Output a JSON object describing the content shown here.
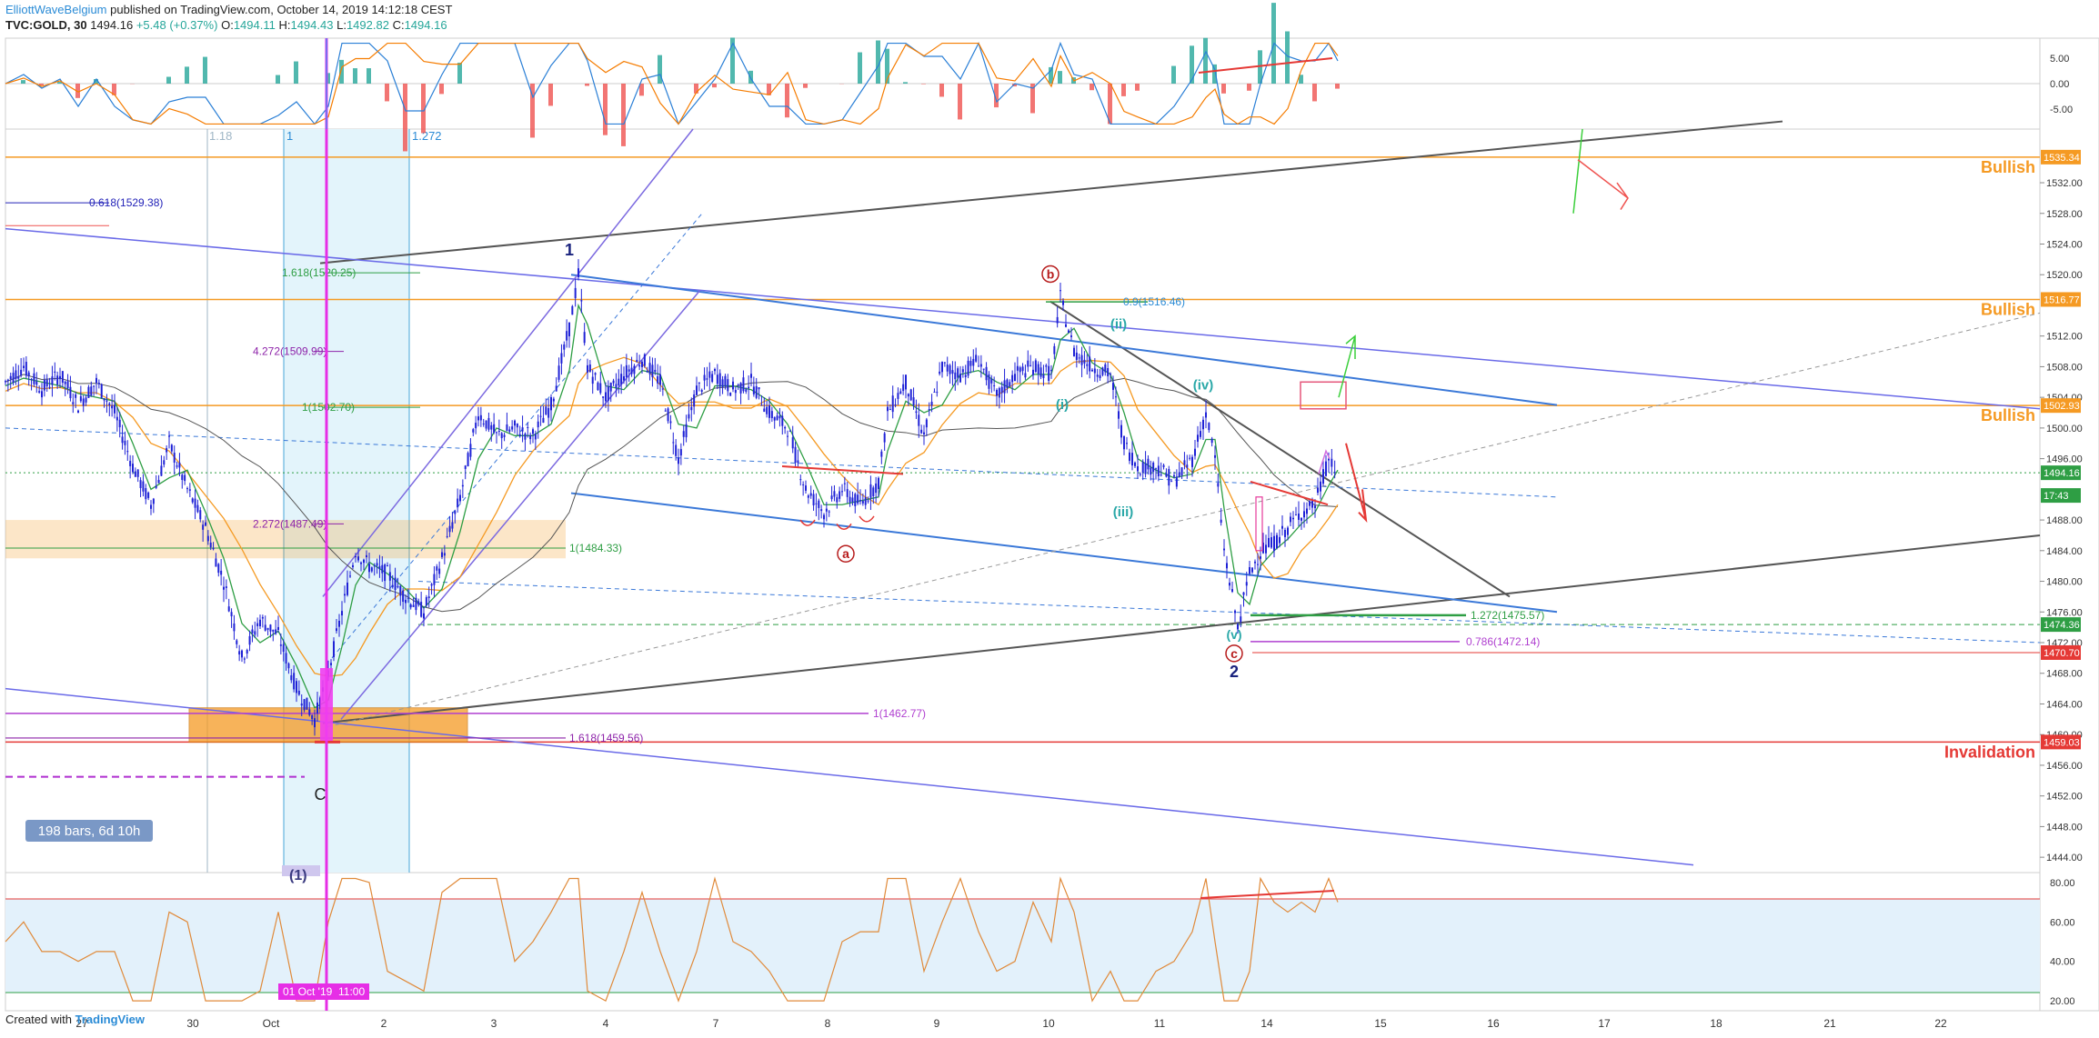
{
  "header": {
    "author": "ElliottWaveBelgium",
    "published": " published on TradingView.com, October 14, 2019 14:12:18 CEST",
    "symbol": "TVC:GOLD, 30",
    "last": "1494.16",
    "change": "+5.48 (+0.37%)",
    "o_label": "O:",
    "o": "1494.11",
    "h_label": "H:",
    "h": "1494.43",
    "l_label": "L:",
    "l": "1492.82",
    "c_label": "C:",
    "c": "1494.16"
  },
  "footer": {
    "created": "Created with",
    "brand": "TradingView"
  },
  "colors": {
    "candle": "#1f22d6",
    "bullish": "#f59a23",
    "invalid": "#e53935",
    "trend": "#555555",
    "channel": "#3a78d8",
    "green": "#2e9e44",
    "purple": "#8e24aa",
    "macd_up": "#26a69a",
    "macd_dn": "#ef5350",
    "rsi": "#e08a3a"
  },
  "chart_data": [
    {
      "type": "line",
      "name": "price",
      "ylim": [
        1442,
        1539
      ],
      "x_ticks": [
        "27",
        "30",
        "Oct",
        "2",
        "3",
        "4",
        "7",
        "8",
        "9",
        "10",
        "11",
        "14",
        "15",
        "16",
        "17",
        "18",
        "21",
        "22"
      ],
      "y_ticks": [
        "1532.00",
        "1528.00",
        "1524.00",
        "1520.00",
        "1512.00",
        "1508.00",
        "1504.00",
        "1500.00",
        "1496.00",
        "1488.00",
        "1484.00",
        "1480.00",
        "1476.00",
        "1472.00",
        "1468.00",
        "1464.00",
        "1460.00",
        "1456.00",
        "1452.00",
        "1448.00",
        "1444.00"
      ],
      "price_badges": [
        {
          "value": 1535.34,
          "label": "1535.34",
          "color": "#f59a23"
        },
        {
          "value": 1516.77,
          "label": "1516.77",
          "color": "#f59a23"
        },
        {
          "value": 1502.93,
          "label": "1502.93",
          "color": "#f59a23"
        },
        {
          "value": 1494.16,
          "label": "1494.16",
          "color": "#2e9e44"
        },
        {
          "value": 1491.2,
          "label": "17:43",
          "color": "#2e9e44"
        },
        {
          "value": 1474.36,
          "label": "1474.36",
          "color": "#2e9e44"
        },
        {
          "value": 1470.7,
          "label": "1470.70",
          "color": "#e53935"
        },
        {
          "value": 1459.03,
          "label": "1459.03",
          "color": "#e53935"
        }
      ],
      "zone_labels": [
        {
          "text": "Bullish",
          "value": 1535.34
        },
        {
          "text": "Bullish",
          "value": 1516.77
        },
        {
          "text": "Bullish",
          "value": 1502.93
        },
        {
          "text": "Invalidation",
          "value": 1459.03
        }
      ],
      "fib_labels": [
        {
          "text": "0.618(1529.38)",
          "value": 1529.38
        },
        {
          "text": "1.618(1520.25)",
          "value": 1520.25
        },
        {
          "text": "4.272(1509.99)",
          "value": 1509.99
        },
        {
          "text": "1(1502.70)",
          "value": 1502.7
        },
        {
          "text": "2.272(1487.49)",
          "value": 1487.49
        },
        {
          "text": "1(1484.33)",
          "value": 1484.33
        },
        {
          "text": "1(1462.77)",
          "value": 1462.77
        },
        {
          "text": "1.618(1459.56)",
          "value": 1459.56
        },
        {
          "text": "0.9(1516.46)",
          "value": 1516.46
        },
        {
          "text": "1.272(1475.57)",
          "value": 1475.57
        },
        {
          "text": "0.786(1472.14)",
          "value": 1472.14
        }
      ],
      "fib_time_labels": [
        "1.18",
        "1",
        "1.272"
      ],
      "wave_labels": [
        "1",
        "b",
        "a",
        "c",
        "(ii)",
        "(i)",
        "(iv)",
        "(iii)",
        "(v)",
        "2",
        "C"
      ],
      "bars_label": "198 bars, 6d 10h",
      "date_badge": "01 Oct '19",
      "time_badge": "11:00",
      "partial_label": "(1)",
      "series": [
        {
          "x": 0,
          "y": 1506
        },
        {
          "x": 20,
          "y": 1508
        },
        {
          "x": 40,
          "y": 1505
        },
        {
          "x": 60,
          "y": 1507
        },
        {
          "x": 80,
          "y": 1503
        },
        {
          "x": 100,
          "y": 1506
        },
        {
          "x": 120,
          "y": 1502
        },
        {
          "x": 140,
          "y": 1495
        },
        {
          "x": 160,
          "y": 1490
        },
        {
          "x": 180,
          "y": 1498
        },
        {
          "x": 200,
          "y": 1492
        },
        {
          "x": 220,
          "y": 1487
        },
        {
          "x": 240,
          "y": 1480
        },
        {
          "x": 260,
          "y": 1470
        },
        {
          "x": 280,
          "y": 1475
        },
        {
          "x": 300,
          "y": 1473
        },
        {
          "x": 320,
          "y": 1466
        },
        {
          "x": 340,
          "y": 1462
        },
        {
          "x": 355,
          "y": 1468
        },
        {
          "x": 370,
          "y": 1476
        },
        {
          "x": 385,
          "y": 1484
        },
        {
          "x": 400,
          "y": 1482
        },
        {
          "x": 420,
          "y": 1481
        },
        {
          "x": 440,
          "y": 1478
        },
        {
          "x": 460,
          "y": 1476
        },
        {
          "x": 480,
          "y": 1483
        },
        {
          "x": 500,
          "y": 1491
        },
        {
          "x": 520,
          "y": 1502
        },
        {
          "x": 540,
          "y": 1499
        },
        {
          "x": 560,
          "y": 1500
        },
        {
          "x": 580,
          "y": 1499
        },
        {
          "x": 600,
          "y": 1503
        },
        {
          "x": 620,
          "y": 1513
        },
        {
          "x": 630,
          "y": 1520
        },
        {
          "x": 640,
          "y": 1508
        },
        {
          "x": 660,
          "y": 1504
        },
        {
          "x": 680,
          "y": 1507
        },
        {
          "x": 700,
          "y": 1509
        },
        {
          "x": 720,
          "y": 1506
        },
        {
          "x": 740,
          "y": 1496
        },
        {
          "x": 760,
          "y": 1505
        },
        {
          "x": 780,
          "y": 1507
        },
        {
          "x": 800,
          "y": 1505
        },
        {
          "x": 820,
          "y": 1506
        },
        {
          "x": 840,
          "y": 1502
        },
        {
          "x": 860,
          "y": 1500
        },
        {
          "x": 880,
          "y": 1492
        },
        {
          "x": 900,
          "y": 1489
        },
        {
          "x": 920,
          "y": 1492
        },
        {
          "x": 940,
          "y": 1490
        },
        {
          "x": 960,
          "y": 1493
        },
        {
          "x": 970,
          "y": 1502
        },
        {
          "x": 990,
          "y": 1506
        },
        {
          "x": 1010,
          "y": 1499
        },
        {
          "x": 1030,
          "y": 1508
        },
        {
          "x": 1050,
          "y": 1507
        },
        {
          "x": 1070,
          "y": 1509
        },
        {
          "x": 1090,
          "y": 1504
        },
        {
          "x": 1110,
          "y": 1507
        },
        {
          "x": 1130,
          "y": 1508
        },
        {
          "x": 1150,
          "y": 1507
        },
        {
          "x": 1160,
          "y": 1517
        },
        {
          "x": 1175,
          "y": 1510
        },
        {
          "x": 1195,
          "y": 1508
        },
        {
          "x": 1215,
          "y": 1507
        },
        {
          "x": 1230,
          "y": 1498
        },
        {
          "x": 1245,
          "y": 1495
        },
        {
          "x": 1265,
          "y": 1495
        },
        {
          "x": 1285,
          "y": 1493
        },
        {
          "x": 1305,
          "y": 1496
        },
        {
          "x": 1320,
          "y": 1502
        },
        {
          "x": 1330,
          "y": 1496
        },
        {
          "x": 1340,
          "y": 1484
        },
        {
          "x": 1355,
          "y": 1474
        },
        {
          "x": 1368,
          "y": 1481
        },
        {
          "x": 1380,
          "y": 1484
        },
        {
          "x": 1395,
          "y": 1485
        },
        {
          "x": 1410,
          "y": 1487
        },
        {
          "x": 1425,
          "y": 1489
        },
        {
          "x": 1440,
          "y": 1490
        },
        {
          "x": 1455,
          "y": 1496
        },
        {
          "x": 1465,
          "y": 1494
        }
      ]
    },
    {
      "type": "bar",
      "name": "macd",
      "ylim": [
        -9,
        9
      ],
      "y_ticks": [
        "5.00",
        "0.00",
        "-5.00"
      ]
    },
    {
      "type": "line",
      "name": "rsi",
      "ylim": [
        15,
        85
      ],
      "y_ticks": [
        "80.00",
        "60.00",
        "40.00",
        "20.00"
      ],
      "levels": [
        70,
        30
      ]
    }
  ]
}
